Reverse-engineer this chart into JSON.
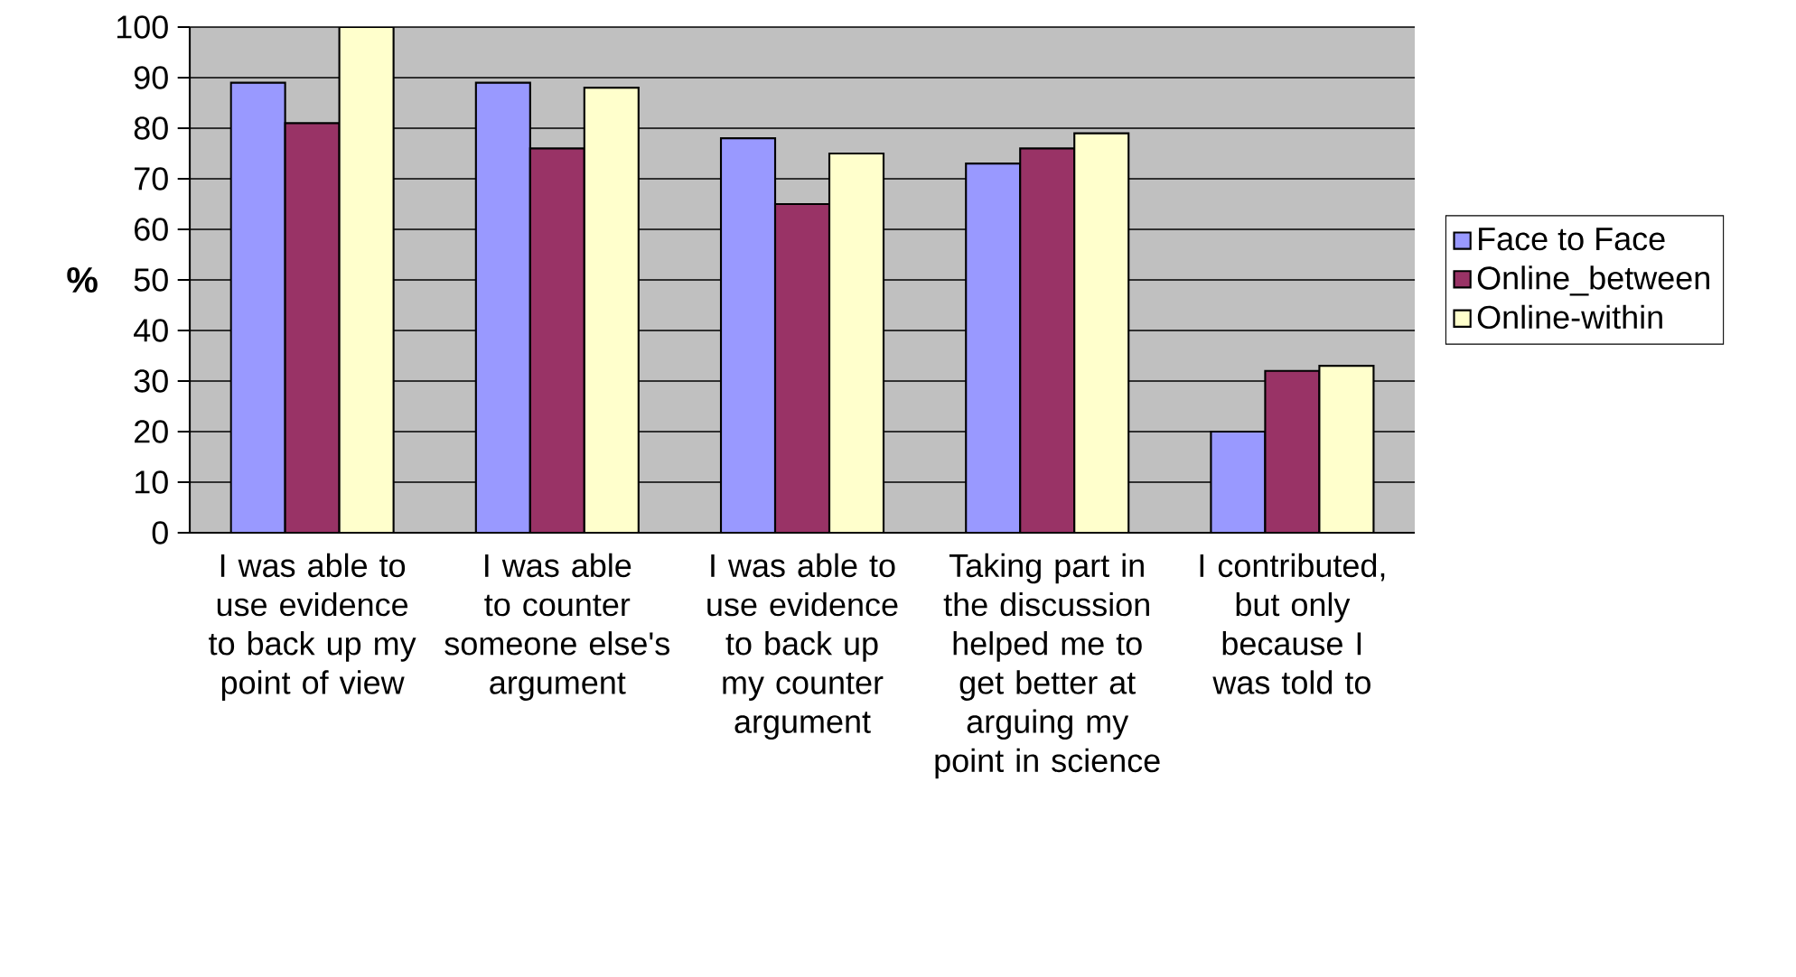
{
  "chart_data": {
    "type": "bar",
    "ylabel": "%",
    "categories": [
      "I was able to use evidence to back up my point of view",
      "I was able to counter someone else's argument",
      "I was able to use evidence to back up my counter argument",
      "Taking part in the discussion helped me to get better at arguing my point in science",
      "I contributed, but only because I was told to"
    ],
    "series": [
      {
        "name": "Face to Face",
        "color": "#9999ff",
        "values": [
          89,
          89,
          78,
          73,
          20
        ]
      },
      {
        "name": "Online_between",
        "color": "#993366",
        "values": [
          81,
          76,
          65,
          76,
          32
        ]
      },
      {
        "name": "Online-within",
        "color": "#ffffcc",
        "values": [
          100,
          88,
          75,
          79,
          33
        ]
      }
    ],
    "ylim": [
      0,
      100
    ],
    "yticks": [
      0,
      10,
      20,
      30,
      40,
      50,
      60,
      70,
      80,
      90,
      100
    ],
    "grid": "y",
    "legend": "right"
  }
}
